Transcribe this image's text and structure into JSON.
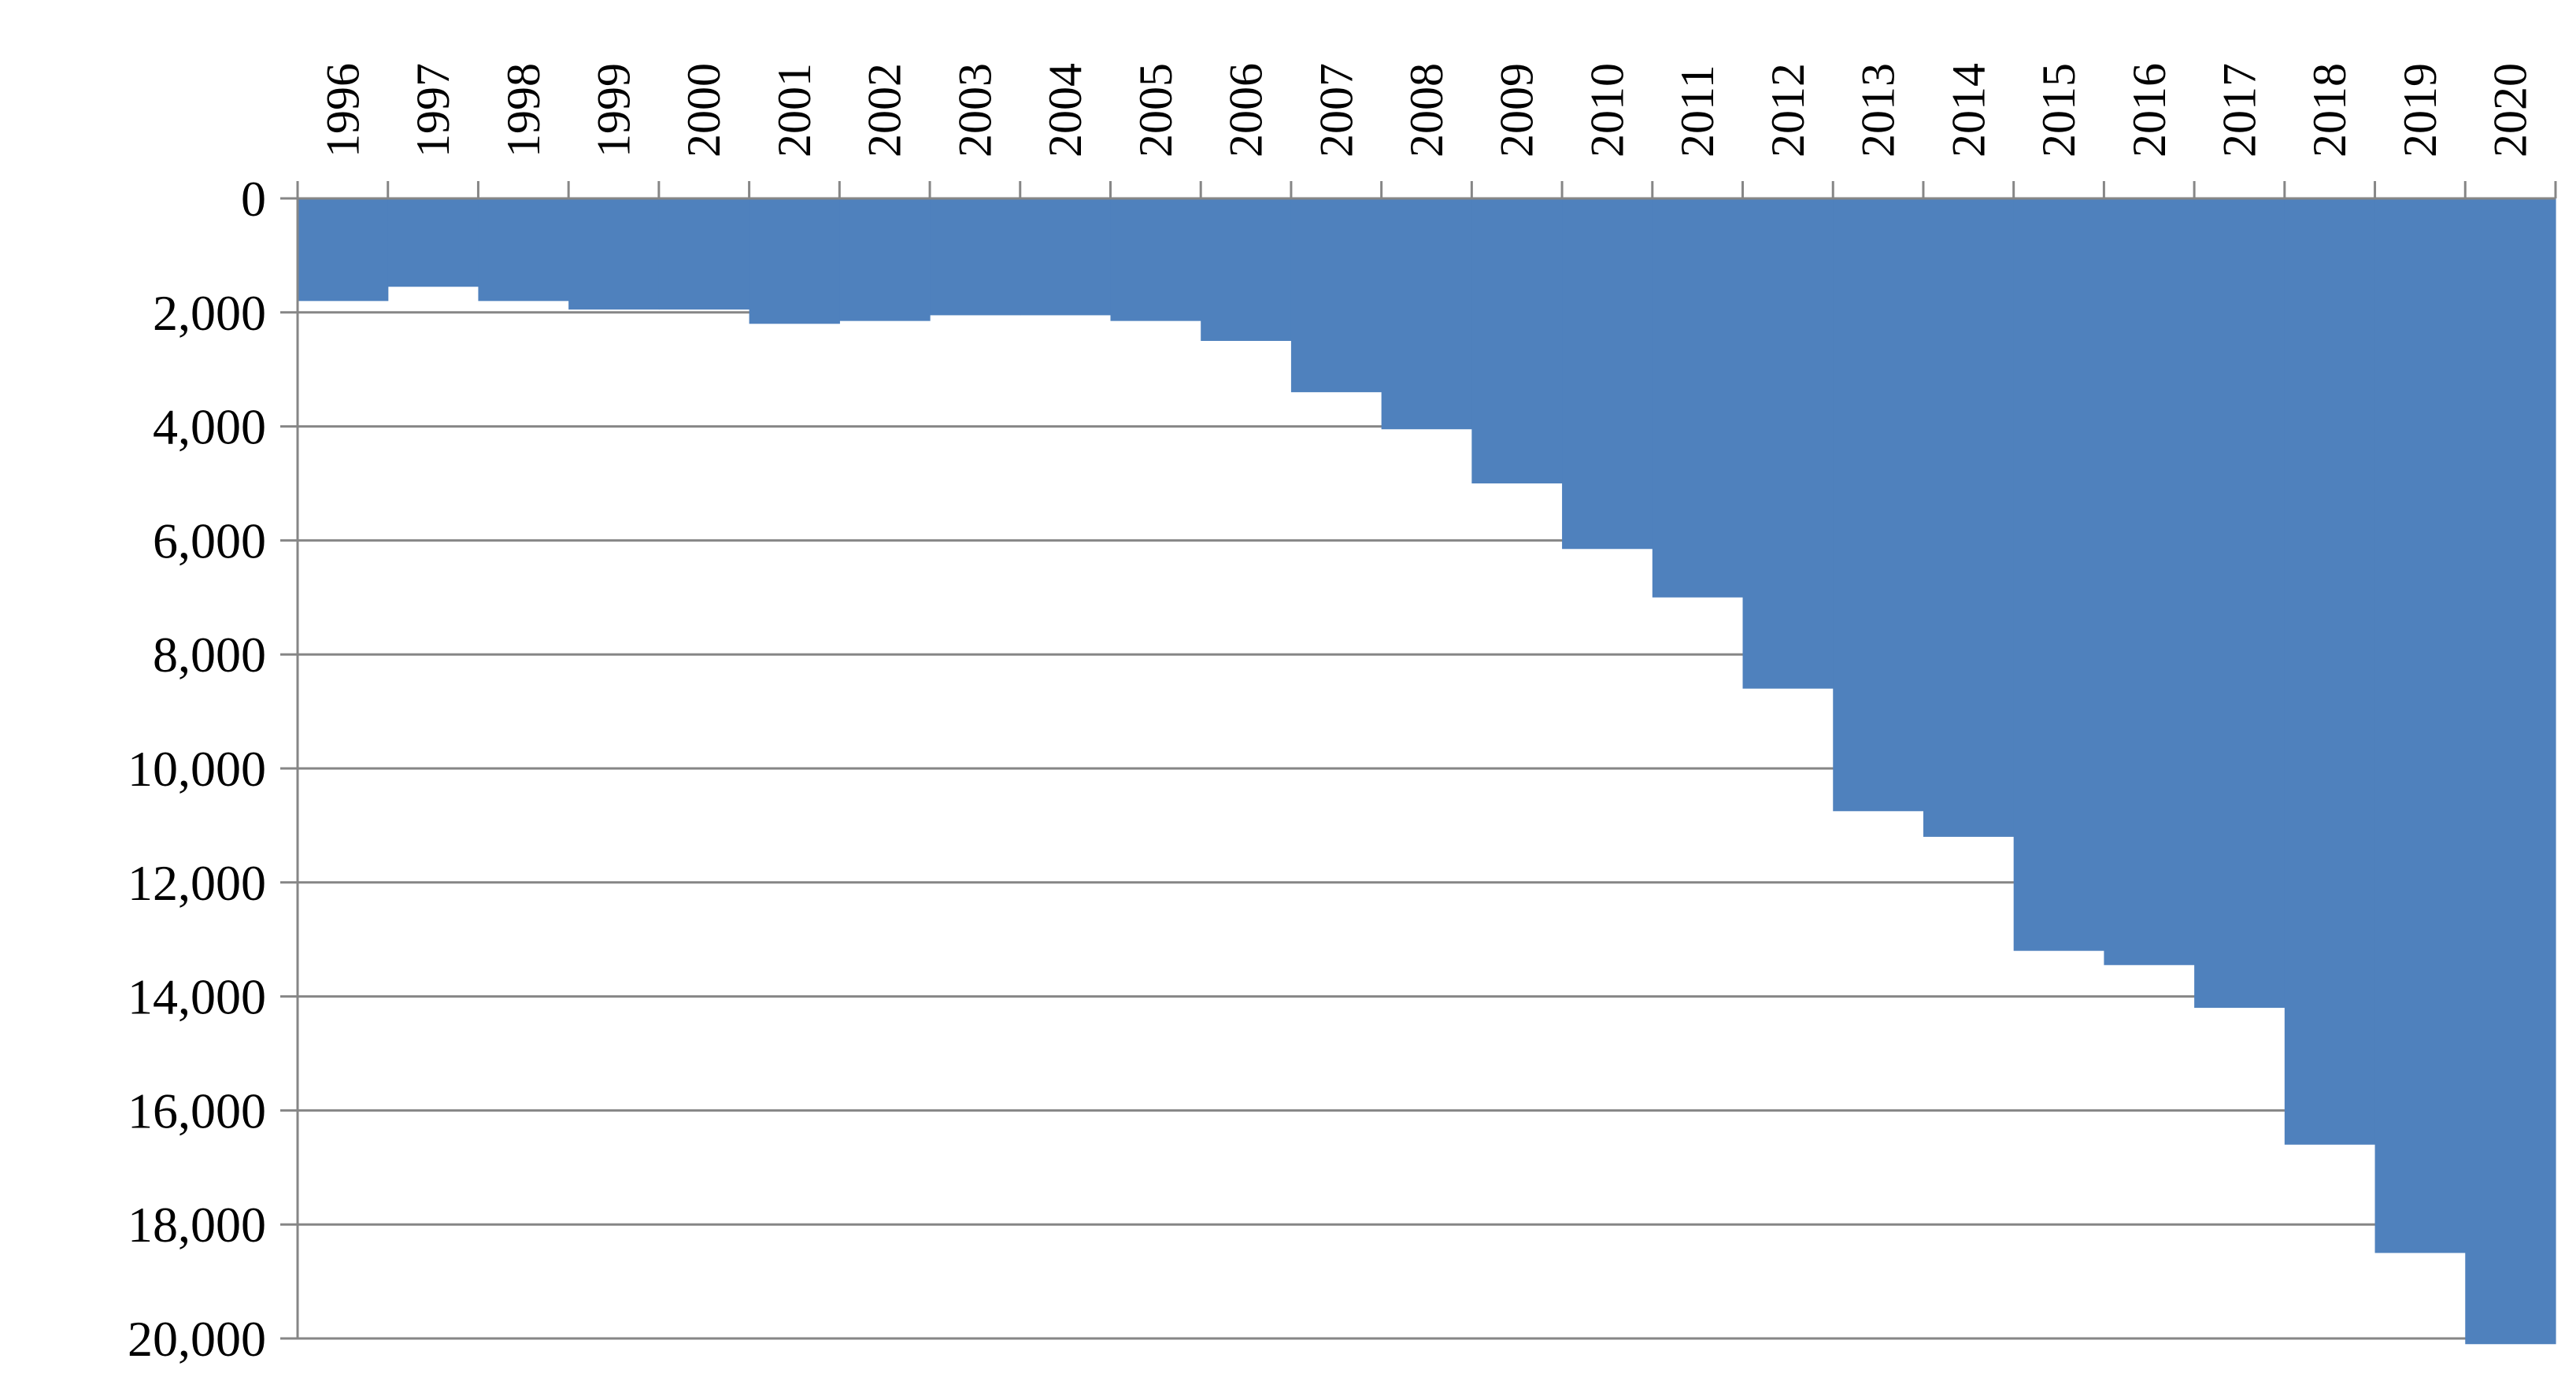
{
  "colors": {
    "bar_fill": "#4f81bd",
    "gridline": "#868686",
    "axis": "#868686",
    "text": "#000000",
    "background": "#ffffff"
  },
  "chart_data": {
    "type": "bar",
    "orientation": "vertical-inverted",
    "title": "",
    "xlabel": "",
    "ylabel": "",
    "categories": [
      "1996",
      "1997",
      "1998",
      "1999",
      "2000",
      "2001",
      "2002",
      "2003",
      "2004",
      "2005",
      "2006",
      "2007",
      "2008",
      "2009",
      "2010",
      "2011",
      "2012",
      "2013",
      "2014",
      "2015",
      "2016",
      "2017",
      "2018",
      "2019",
      "2020"
    ],
    "values": [
      1800,
      1550,
      1800,
      1950,
      1950,
      2200,
      2150,
      2050,
      2050,
      2150,
      2500,
      3400,
      4050,
      5000,
      6150,
      7000,
      8600,
      10750,
      11200,
      13200,
      13450,
      14200,
      16600,
      18500,
      20100
    ],
    "ylim": [
      0,
      20000
    ],
    "y_ticks": [
      0,
      2000,
      4000,
      6000,
      8000,
      10000,
      12000,
      14000,
      16000,
      18000,
      20000
    ],
    "y_tick_labels": [
      "0",
      "2,000",
      "4,000",
      "6,000",
      "8,000",
      "10,000",
      "12,000",
      "14,000",
      "16,000",
      "18,000",
      "20,000"
    ],
    "y_axis_inverted": true,
    "x_axis_position": "top",
    "x_tick_label_rotation": "vertical",
    "grid": true,
    "legend": "none",
    "bar_gap": 0
  }
}
